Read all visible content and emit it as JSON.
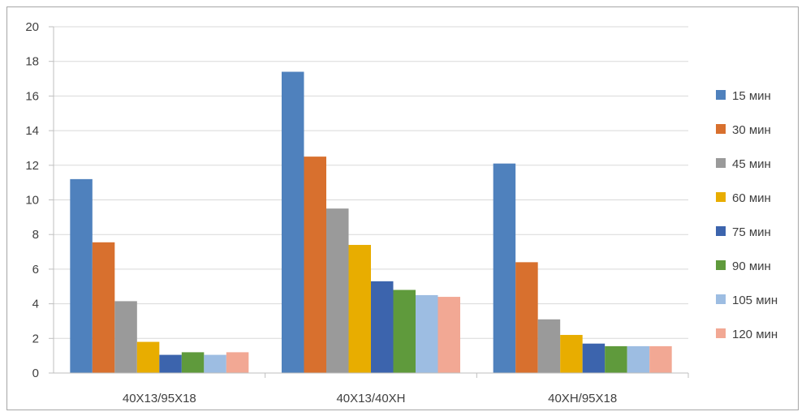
{
  "chart_data": {
    "type": "bar",
    "categories": [
      "40Х13/95Х18",
      "40Х13/40ХН",
      "40ХН/95Х18"
    ],
    "series": [
      {
        "name": "15 мин",
        "color": "#4f81bd",
        "values": [
          11.2,
          17.4,
          12.1
        ]
      },
      {
        "name": "30 мин",
        "color": "#d8702e",
        "values": [
          7.55,
          12.5,
          6.4
        ]
      },
      {
        "name": "45 мин",
        "color": "#9a9a9a",
        "values": [
          4.15,
          9.5,
          3.1
        ]
      },
      {
        "name": "60 мин",
        "color": "#e8ad00",
        "values": [
          1.8,
          7.4,
          2.2
        ]
      },
      {
        "name": "75 мин",
        "color": "#3c64ad",
        "values": [
          1.05,
          5.3,
          1.7
        ]
      },
      {
        "name": "90 мин",
        "color": "#5f9a3c",
        "values": [
          1.2,
          4.8,
          1.55
        ]
      },
      {
        "name": "105 мин",
        "color": "#9dbde2",
        "values": [
          1.05,
          4.5,
          1.55
        ]
      },
      {
        "name": "120 мин",
        "color": "#f2a894",
        "values": [
          1.2,
          4.4,
          1.55
        ]
      }
    ],
    "yticks": [
      "0",
      "2",
      "4",
      "6",
      "8",
      "10",
      "12",
      "14",
      "16",
      "18",
      "20"
    ],
    "ylim": [
      0,
      20
    ],
    "grid": true,
    "legend_position": "right"
  }
}
